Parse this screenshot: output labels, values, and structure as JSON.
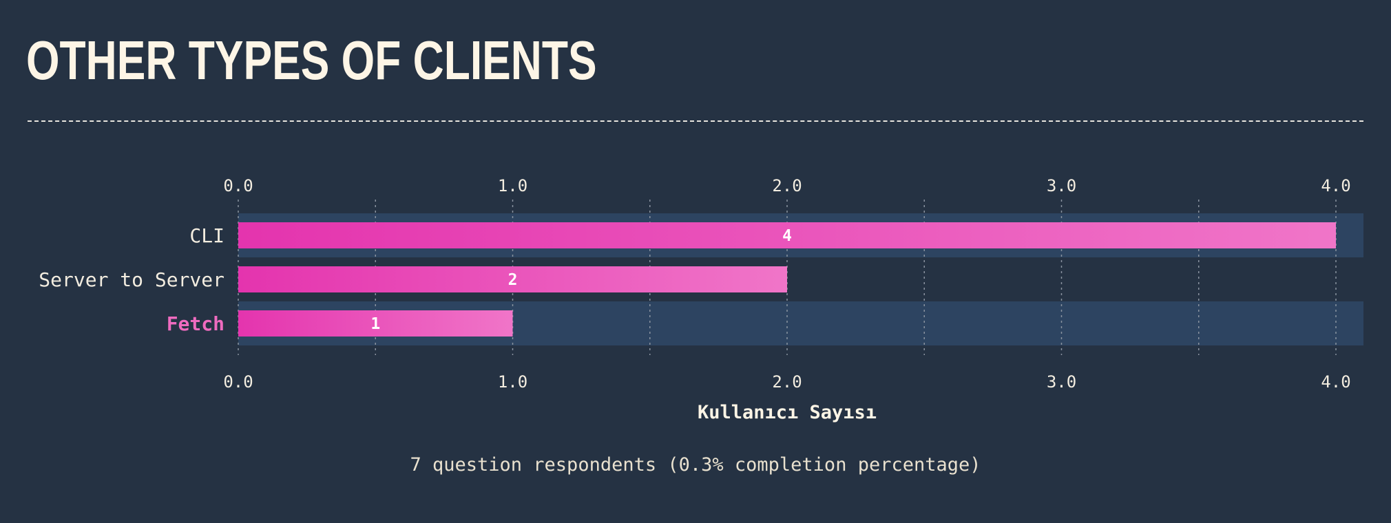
{
  "header": {
    "title": "OTHER TYPES OF CLIENTS"
  },
  "footer": {
    "text": "7 question respondents (0.3% completion percentage)"
  },
  "colors": {
    "background": "#253243",
    "row_band": "#2d4461",
    "bar_start": "#e434ae",
    "bar_end": "#f075c8",
    "highlight_label": "#ee6bbf",
    "text": "#f3ede0"
  },
  "chart_data": {
    "type": "bar",
    "orientation": "horizontal",
    "categories": [
      "CLI",
      "Server to Server",
      "Fetch"
    ],
    "values": [
      4,
      2,
      1
    ],
    "highlighted_category": "Fetch",
    "xlabel": "Kullanıcı Sayısı",
    "xlim": [
      0,
      4
    ],
    "xticks": [
      "0.0",
      "1.0",
      "2.0",
      "3.0",
      "4.0"
    ],
    "data_labels": true,
    "grid": true,
    "tick_labels_top_and_bottom": true
  }
}
